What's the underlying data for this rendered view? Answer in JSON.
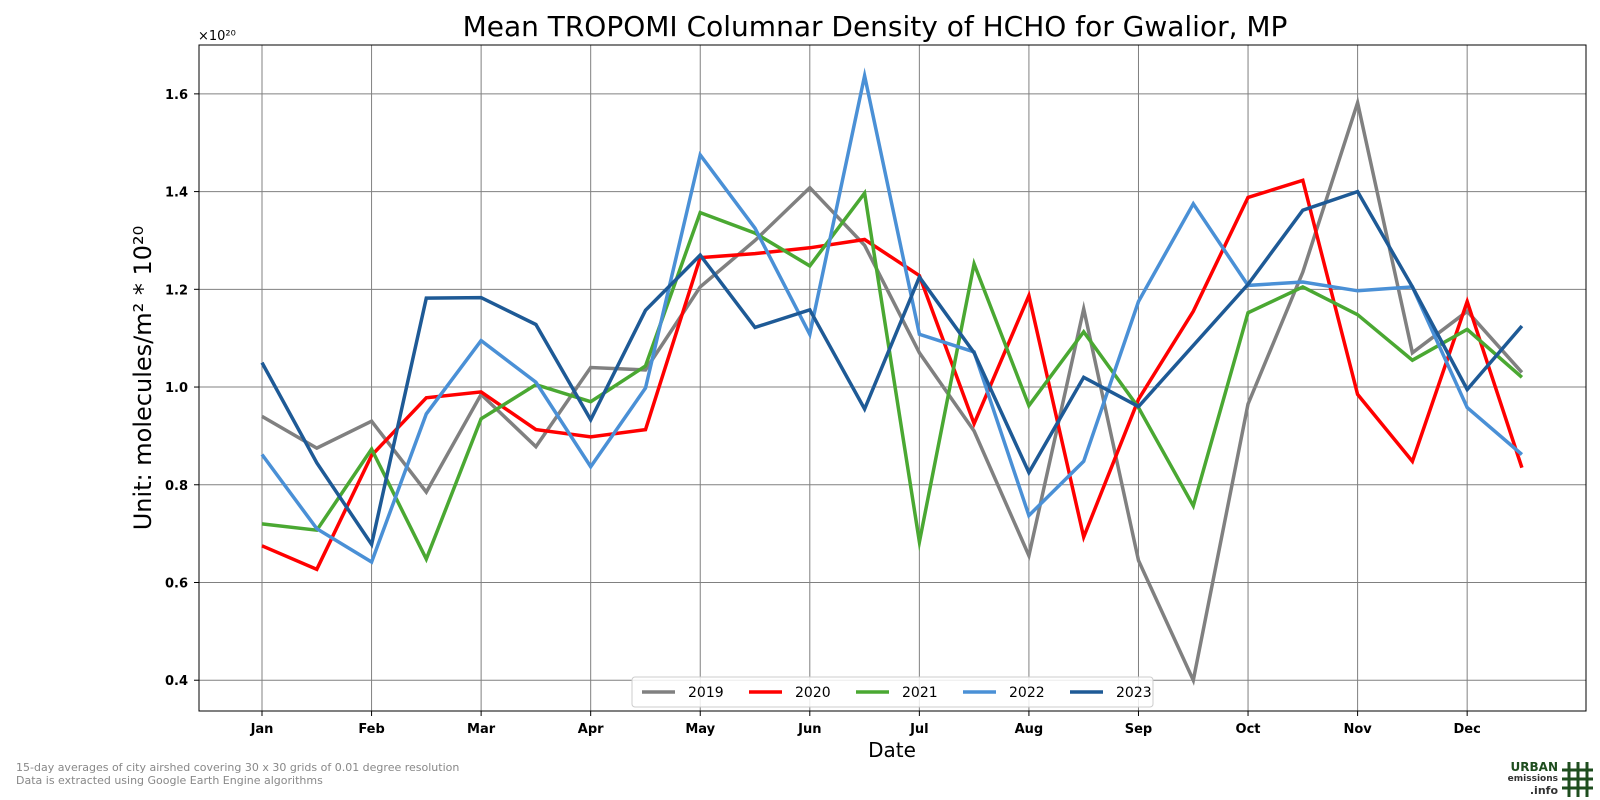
{
  "chart_data": {
    "type": "line",
    "title": "Mean TROPOMI Columnar Density of HCHO for Gwalior, MP",
    "xlabel": "Date",
    "ylabel": "Unit: molecules/m² * 10²⁰",
    "y_multiplier_label": "×10²⁰",
    "ylim": [
      0.337,
      1.7
    ],
    "yticks": [
      "0.4",
      "0.6",
      "0.8",
      "1.0",
      "1.2",
      "1.4",
      "1.6"
    ],
    "ytick_values": [
      0.4,
      0.6,
      0.8,
      1.0,
      1.2,
      1.4,
      1.6
    ],
    "xticks": [
      "Jan",
      "Feb",
      "Mar",
      "Apr",
      "May",
      "Jun",
      "Jul",
      "Aug",
      "Sep",
      "Oct",
      "Nov",
      "Dec"
    ],
    "x": [
      "Jan 1",
      "Jan 16",
      "Feb 1",
      "Feb 16",
      "Mar 1",
      "Mar 16",
      "Apr 1",
      "Apr 16",
      "May 1",
      "May 16",
      "Jun 1",
      "Jun 16",
      "Jul 1",
      "Jul 16",
      "Aug 1",
      "Aug 16",
      "Sep 1",
      "Sep 16",
      "Oct 1",
      "Oct 16",
      "Nov 1",
      "Nov 16",
      "Dec 1",
      "Dec 16"
    ],
    "grid": true,
    "legend_position": "bottom-center",
    "series": [
      {
        "name": "2019",
        "color": "#808080",
        "values": [
          0.94,
          0.875,
          0.93,
          0.785,
          0.985,
          0.878,
          1.04,
          1.035,
          1.205,
          1.3,
          1.408,
          1.29,
          1.07,
          0.91,
          0.655,
          1.16,
          0.645,
          0.4,
          0.965,
          1.235,
          1.582,
          1.07,
          1.155,
          1.03
        ]
      },
      {
        "name": "2020",
        "color": "#ff0000",
        "values": [
          0.675,
          0.627,
          0.86,
          0.978,
          0.99,
          0.913,
          0.898,
          0.913,
          1.265,
          1.273,
          1.285,
          1.302,
          1.228,
          0.925,
          1.187,
          0.693,
          0.975,
          1.155,
          1.388,
          1.423,
          0.985,
          0.848,
          1.175,
          0.835
        ]
      },
      {
        "name": "2021",
        "color": "#4aa832",
        "values": [
          0.72,
          0.707,
          0.873,
          0.648,
          0.935,
          1.005,
          0.97,
          1.043,
          1.357,
          1.315,
          1.248,
          1.397,
          0.683,
          1.252,
          0.962,
          1.113,
          0.958,
          0.757,
          1.152,
          1.205,
          1.148,
          1.055,
          1.118,
          1.02
        ]
      },
      {
        "name": "2022",
        "color": "#4a90d6",
        "values": [
          0.862,
          0.71,
          0.642,
          0.945,
          1.095,
          1.01,
          0.837,
          0.998,
          1.475,
          1.325,
          1.108,
          1.637,
          1.108,
          1.072,
          0.737,
          0.848,
          1.175,
          1.375,
          1.208,
          1.215,
          1.197,
          1.205,
          0.958,
          0.862
        ]
      },
      {
        "name": "2023",
        "color": "#1e5a96",
        "values": [
          1.05,
          0.845,
          0.678,
          1.182,
          1.183,
          1.128,
          0.933,
          1.157,
          1.27,
          1.122,
          1.158,
          0.955,
          1.225,
          1.07,
          0.825,
          1.02,
          0.96,
          null,
          1.21,
          1.362,
          1.4,
          1.205,
          0.995,
          1.125
        ]
      }
    ]
  },
  "footer": {
    "note_line1": "15-day averages of city airshed covering 30 x 30 grids of 0.01 degree resolution",
    "note_line2": "Data is extracted using Google Earth Engine algorithms"
  },
  "logo": {
    "line1": "URBAN",
    "line2": "emissions",
    "line3": ".info",
    "color": "#1e4d1e"
  }
}
